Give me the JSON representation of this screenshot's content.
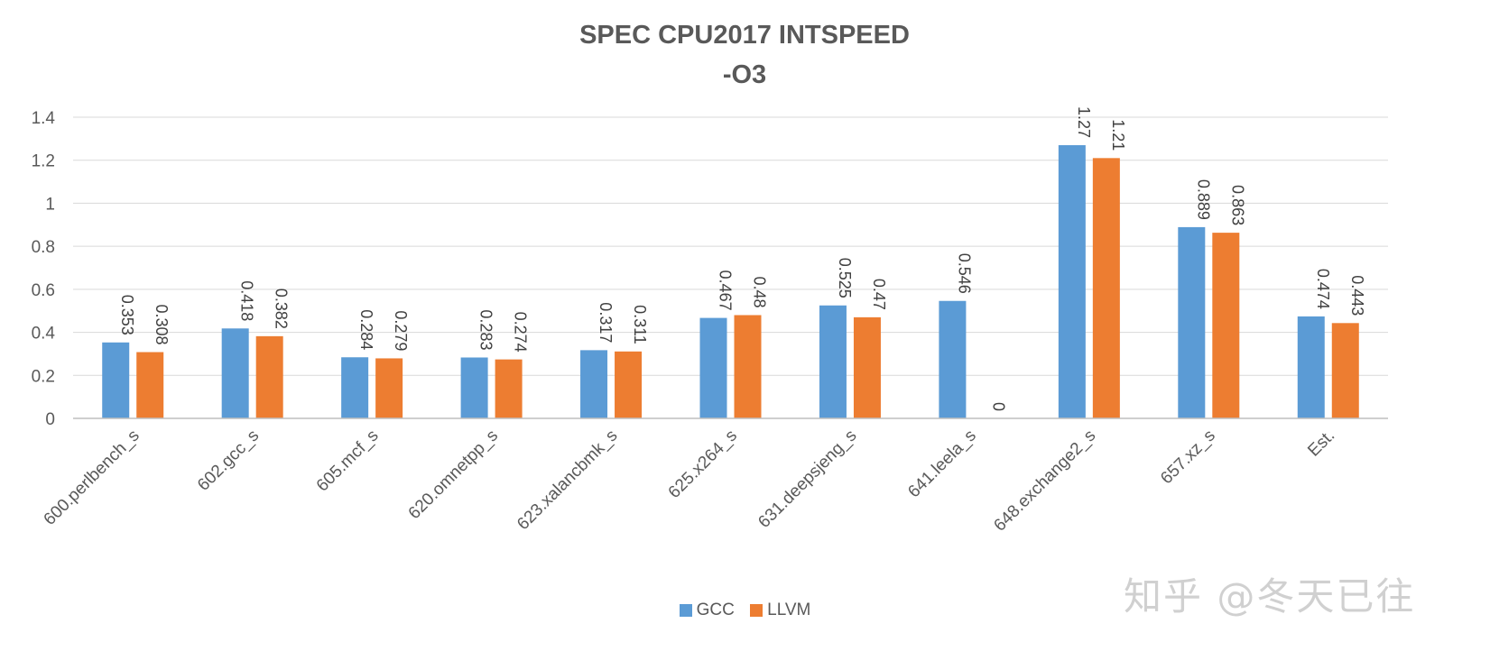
{
  "chart_data": {
    "type": "bar",
    "title": "SPEC CPU2017 INTSPEED",
    "subtitle": "-O3",
    "categories": [
      "600.perlbench_s",
      "602.gcc_s",
      "605.mcf_s",
      "620.omnetpp_s",
      "623.xalancbmk_s",
      "625.x264_s",
      "631.deepsjeng_s",
      "641.leela_s",
      "648.exchange2_s",
      "657.xz_s",
      "Est."
    ],
    "series": [
      {
        "name": "GCC",
        "color": "#5B9BD5",
        "values": [
          0.353,
          0.418,
          0.284,
          0.283,
          0.317,
          0.467,
          0.525,
          0.546,
          1.27,
          0.889,
          0.474
        ]
      },
      {
        "name": "LLVM",
        "color": "#ED7D31",
        "values": [
          0.308,
          0.382,
          0.279,
          0.274,
          0.311,
          0.48,
          0.47,
          0,
          1.21,
          0.863,
          0.443
        ]
      }
    ],
    "data_labels": [
      [
        "0.353",
        "0.418",
        "0.284",
        "0.283",
        "0.317",
        "0.467",
        "0.525",
        "0.546",
        "1.27",
        "0.889",
        "0.474"
      ],
      [
        "0.308",
        "0.382",
        "0.279",
        "0.274",
        "0.311",
        "0.48",
        "0.47",
        "0",
        "1.21",
        "0.863",
        "0.443"
      ]
    ],
    "ylim": [
      0,
      1.4
    ],
    "yticks": [
      "0",
      "0.2",
      "0.4",
      "0.6",
      "0.8",
      "1",
      "1.2",
      "1.4"
    ],
    "grid": true,
    "legend_position": "bottom",
    "xlabel": "",
    "ylabel": ""
  },
  "watermark": "知乎 @冬天已往"
}
